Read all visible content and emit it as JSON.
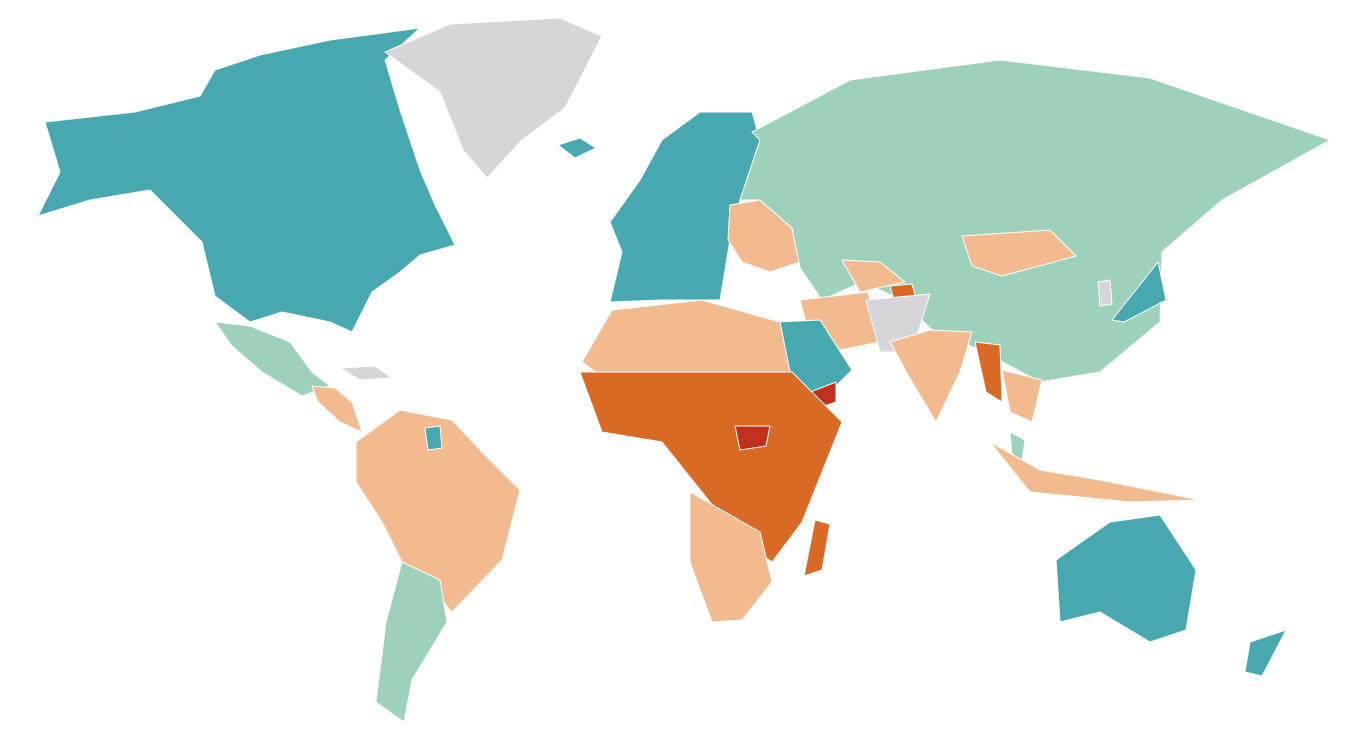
{
  "map": {
    "type": "choropleth",
    "background": "#ffffff",
    "border_color": "#ffffff",
    "category_colors": {
      "1": "#48a8b0",
      "2": "#9dd1ba",
      "3": "#f2bb8f",
      "4": "#d86a26",
      "5": "#c0301f",
      "no_data": "#d6d6da"
    },
    "regions": [
      {
        "id": "north-america",
        "category": "1"
      },
      {
        "id": "greenland",
        "category": "no_data"
      },
      {
        "id": "mexico",
        "category": "2"
      },
      {
        "id": "central-america",
        "category": "3"
      },
      {
        "id": "caribbean",
        "category": "no_data"
      },
      {
        "id": "south-america-north",
        "category": "3"
      },
      {
        "id": "south-america-south",
        "category": "2"
      },
      {
        "id": "guyana",
        "category": "1"
      },
      {
        "id": "europe",
        "category": "1"
      },
      {
        "id": "eastern-europe",
        "category": "3"
      },
      {
        "id": "iceland",
        "category": "1"
      },
      {
        "id": "russia-china",
        "category": "2"
      },
      {
        "id": "mongolia",
        "category": "3"
      },
      {
        "id": "japan",
        "category": "1"
      },
      {
        "id": "korea",
        "category": "no_data"
      },
      {
        "id": "central-asia",
        "category": "3"
      },
      {
        "id": "tajikistan",
        "category": "4"
      },
      {
        "id": "saudi-arabia",
        "category": "1"
      },
      {
        "id": "iran",
        "category": "3"
      },
      {
        "id": "afghanistan-pakistan",
        "category": "no_data"
      },
      {
        "id": "india",
        "category": "3"
      },
      {
        "id": "myanmar",
        "category": "4"
      },
      {
        "id": "indochina",
        "category": "3"
      },
      {
        "id": "malaysia",
        "category": "2"
      },
      {
        "id": "indonesia",
        "category": "3"
      },
      {
        "id": "north-africa",
        "category": "3"
      },
      {
        "id": "sub-saharan-africa",
        "category": "4"
      },
      {
        "id": "southern-africa",
        "category": "3"
      },
      {
        "id": "madagascar",
        "category": "4"
      },
      {
        "id": "south-sudan",
        "category": "5"
      },
      {
        "id": "yemen",
        "category": "5"
      },
      {
        "id": "australia",
        "category": "1"
      },
      {
        "id": "new-zealand",
        "category": "1"
      }
    ]
  }
}
